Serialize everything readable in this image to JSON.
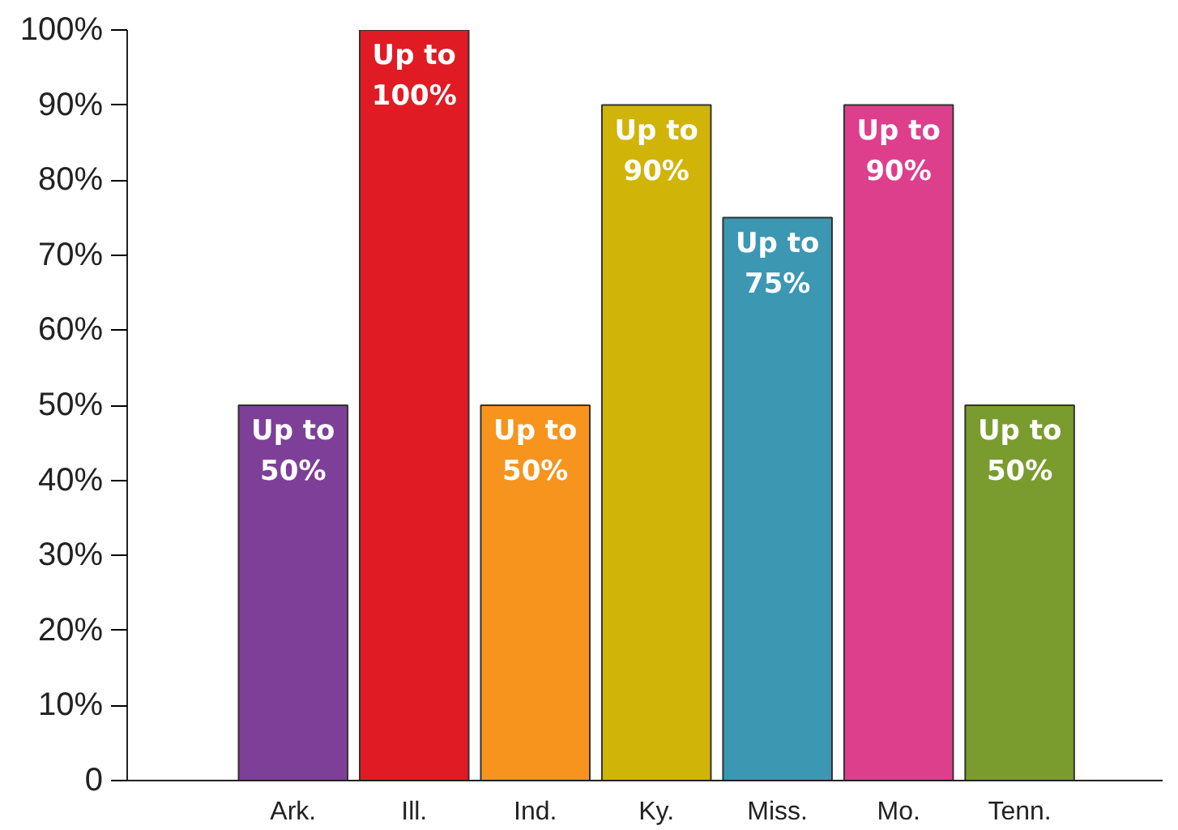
{
  "chart_data": {
    "type": "bar",
    "categories": [
      "Ark.",
      "Ill.",
      "Ind.",
      "Ky.",
      "Miss.",
      "Mo.",
      "Tenn."
    ],
    "values": [
      50,
      100,
      50,
      90,
      75,
      90,
      50
    ],
    "colors": [
      "#7d3f98",
      "#e01b24",
      "#f7941d",
      "#d1b408",
      "#3c97b3",
      "#dd3f8d",
      "#7a9c2f"
    ],
    "value_labels": [
      "Up to 50%",
      "Up to 100%",
      "Up to 50%",
      "Up to 90%",
      "Up to 75%",
      "Up to 90%",
      "Up to 50%"
    ],
    "ylim": [
      0,
      100
    ],
    "yticks": [
      {
        "value": 0,
        "label": "0"
      },
      {
        "value": 10,
        "label": "10%"
      },
      {
        "value": 20,
        "label": "20%"
      },
      {
        "value": 30,
        "label": "30%"
      },
      {
        "value": 40,
        "label": "40%"
      },
      {
        "value": 50,
        "label": "50%"
      },
      {
        "value": 60,
        "label": "60%"
      },
      {
        "value": 70,
        "label": "70%"
      },
      {
        "value": 80,
        "label": "80%"
      },
      {
        "value": 90,
        "label": "90%"
      },
      {
        "value": 100,
        "label": "100%"
      }
    ],
    "grid": false
  }
}
